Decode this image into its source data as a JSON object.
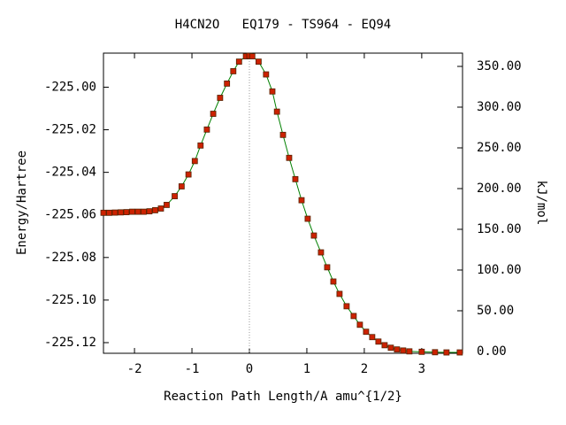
{
  "chart_data": {
    "type": "line",
    "title": "H4CN2O   EQ179 - TS964 - EQ94",
    "x_label": "Reaction Path Length/A amu^{1/2}",
    "y_label": "Energy/Hartree",
    "y2_label": "kJ/mol",
    "x": [
      -2.54,
      -2.44,
      -2.34,
      -2.24,
      -2.14,
      -2.04,
      -1.94,
      -1.84,
      -1.74,
      -1.64,
      -1.54,
      -1.44,
      -1.3,
      -1.18,
      -1.06,
      -0.95,
      -0.85,
      -0.74,
      -0.63,
      -0.51,
      -0.39,
      -0.28,
      -0.18,
      -0.06,
      0.0,
      0.05,
      0.16,
      0.29,
      0.4,
      0.48,
      0.585,
      0.692,
      0.8,
      0.908,
      1.015,
      1.123,
      1.246,
      1.354,
      1.462,
      1.569,
      1.692,
      1.815,
      1.923,
      2.031,
      2.138,
      2.246,
      2.354,
      2.462,
      2.569,
      2.677,
      2.785,
      3.0,
      3.231,
      3.431,
      3.662
    ],
    "series": [
      {
        "name": "Energy",
        "color": "#008000",
        "marker_color": "#cc2200",
        "values": [
          -225.059,
          -225.059,
          -225.0589,
          -225.0588,
          -225.0587,
          -225.0585,
          -225.0585,
          -225.0585,
          -225.0583,
          -225.0578,
          -225.057,
          -225.0553,
          -225.0512,
          -225.0466,
          -225.041,
          -225.0347,
          -225.0274,
          -225.0199,
          -225.0125,
          -225.005,
          -224.9983,
          -224.9925,
          -224.988,
          -224.9855,
          -224.9853,
          -224.9855,
          -224.988,
          -224.994,
          -225.002,
          -225.0115,
          -225.0224,
          -225.0332,
          -225.0432,
          -225.0531,
          -225.0618,
          -225.0697,
          -225.0776,
          -225.0846,
          -225.0913,
          -225.0971,
          -225.1029,
          -225.1075,
          -225.1116,
          -225.1149,
          -225.1174,
          -225.1195,
          -225.1212,
          -225.1224,
          -225.1232,
          -225.1237,
          -225.1241,
          -225.1243,
          -225.1245,
          -225.1246,
          -225.1246
        ]
      }
    ],
    "xlim": [
      -2.54,
      3.71
    ],
    "xticks": [
      -2,
      -1,
      0,
      1,
      2,
      3
    ],
    "ylim": [
      -225.125,
      -224.984
    ],
    "yticks": [
      {
        "value": -225.0,
        "label": "-225.00"
      },
      {
        "value": -225.02,
        "label": "-225.02"
      },
      {
        "value": -225.04,
        "label": "-225.04"
      },
      {
        "value": -225.06,
        "label": "-225.06"
      },
      {
        "value": -225.08,
        "label": "-225.08"
      },
      {
        "value": -225.1,
        "label": "-225.10"
      },
      {
        "value": -225.12,
        "label": "-225.12"
      }
    ],
    "y2lim": [
      -2.2,
      366.3
    ],
    "y2ticks": [
      {
        "value": 0,
        "label": "0.00"
      },
      {
        "value": 50,
        "label": "50.00"
      },
      {
        "value": 100,
        "label": "100.00"
      },
      {
        "value": 150,
        "label": "150.00"
      },
      {
        "value": 200,
        "label": "200.00"
      },
      {
        "value": 250,
        "label": "250.00"
      },
      {
        "value": 300,
        "label": "300.00"
      },
      {
        "value": 350,
        "label": "350.00"
      }
    ]
  }
}
